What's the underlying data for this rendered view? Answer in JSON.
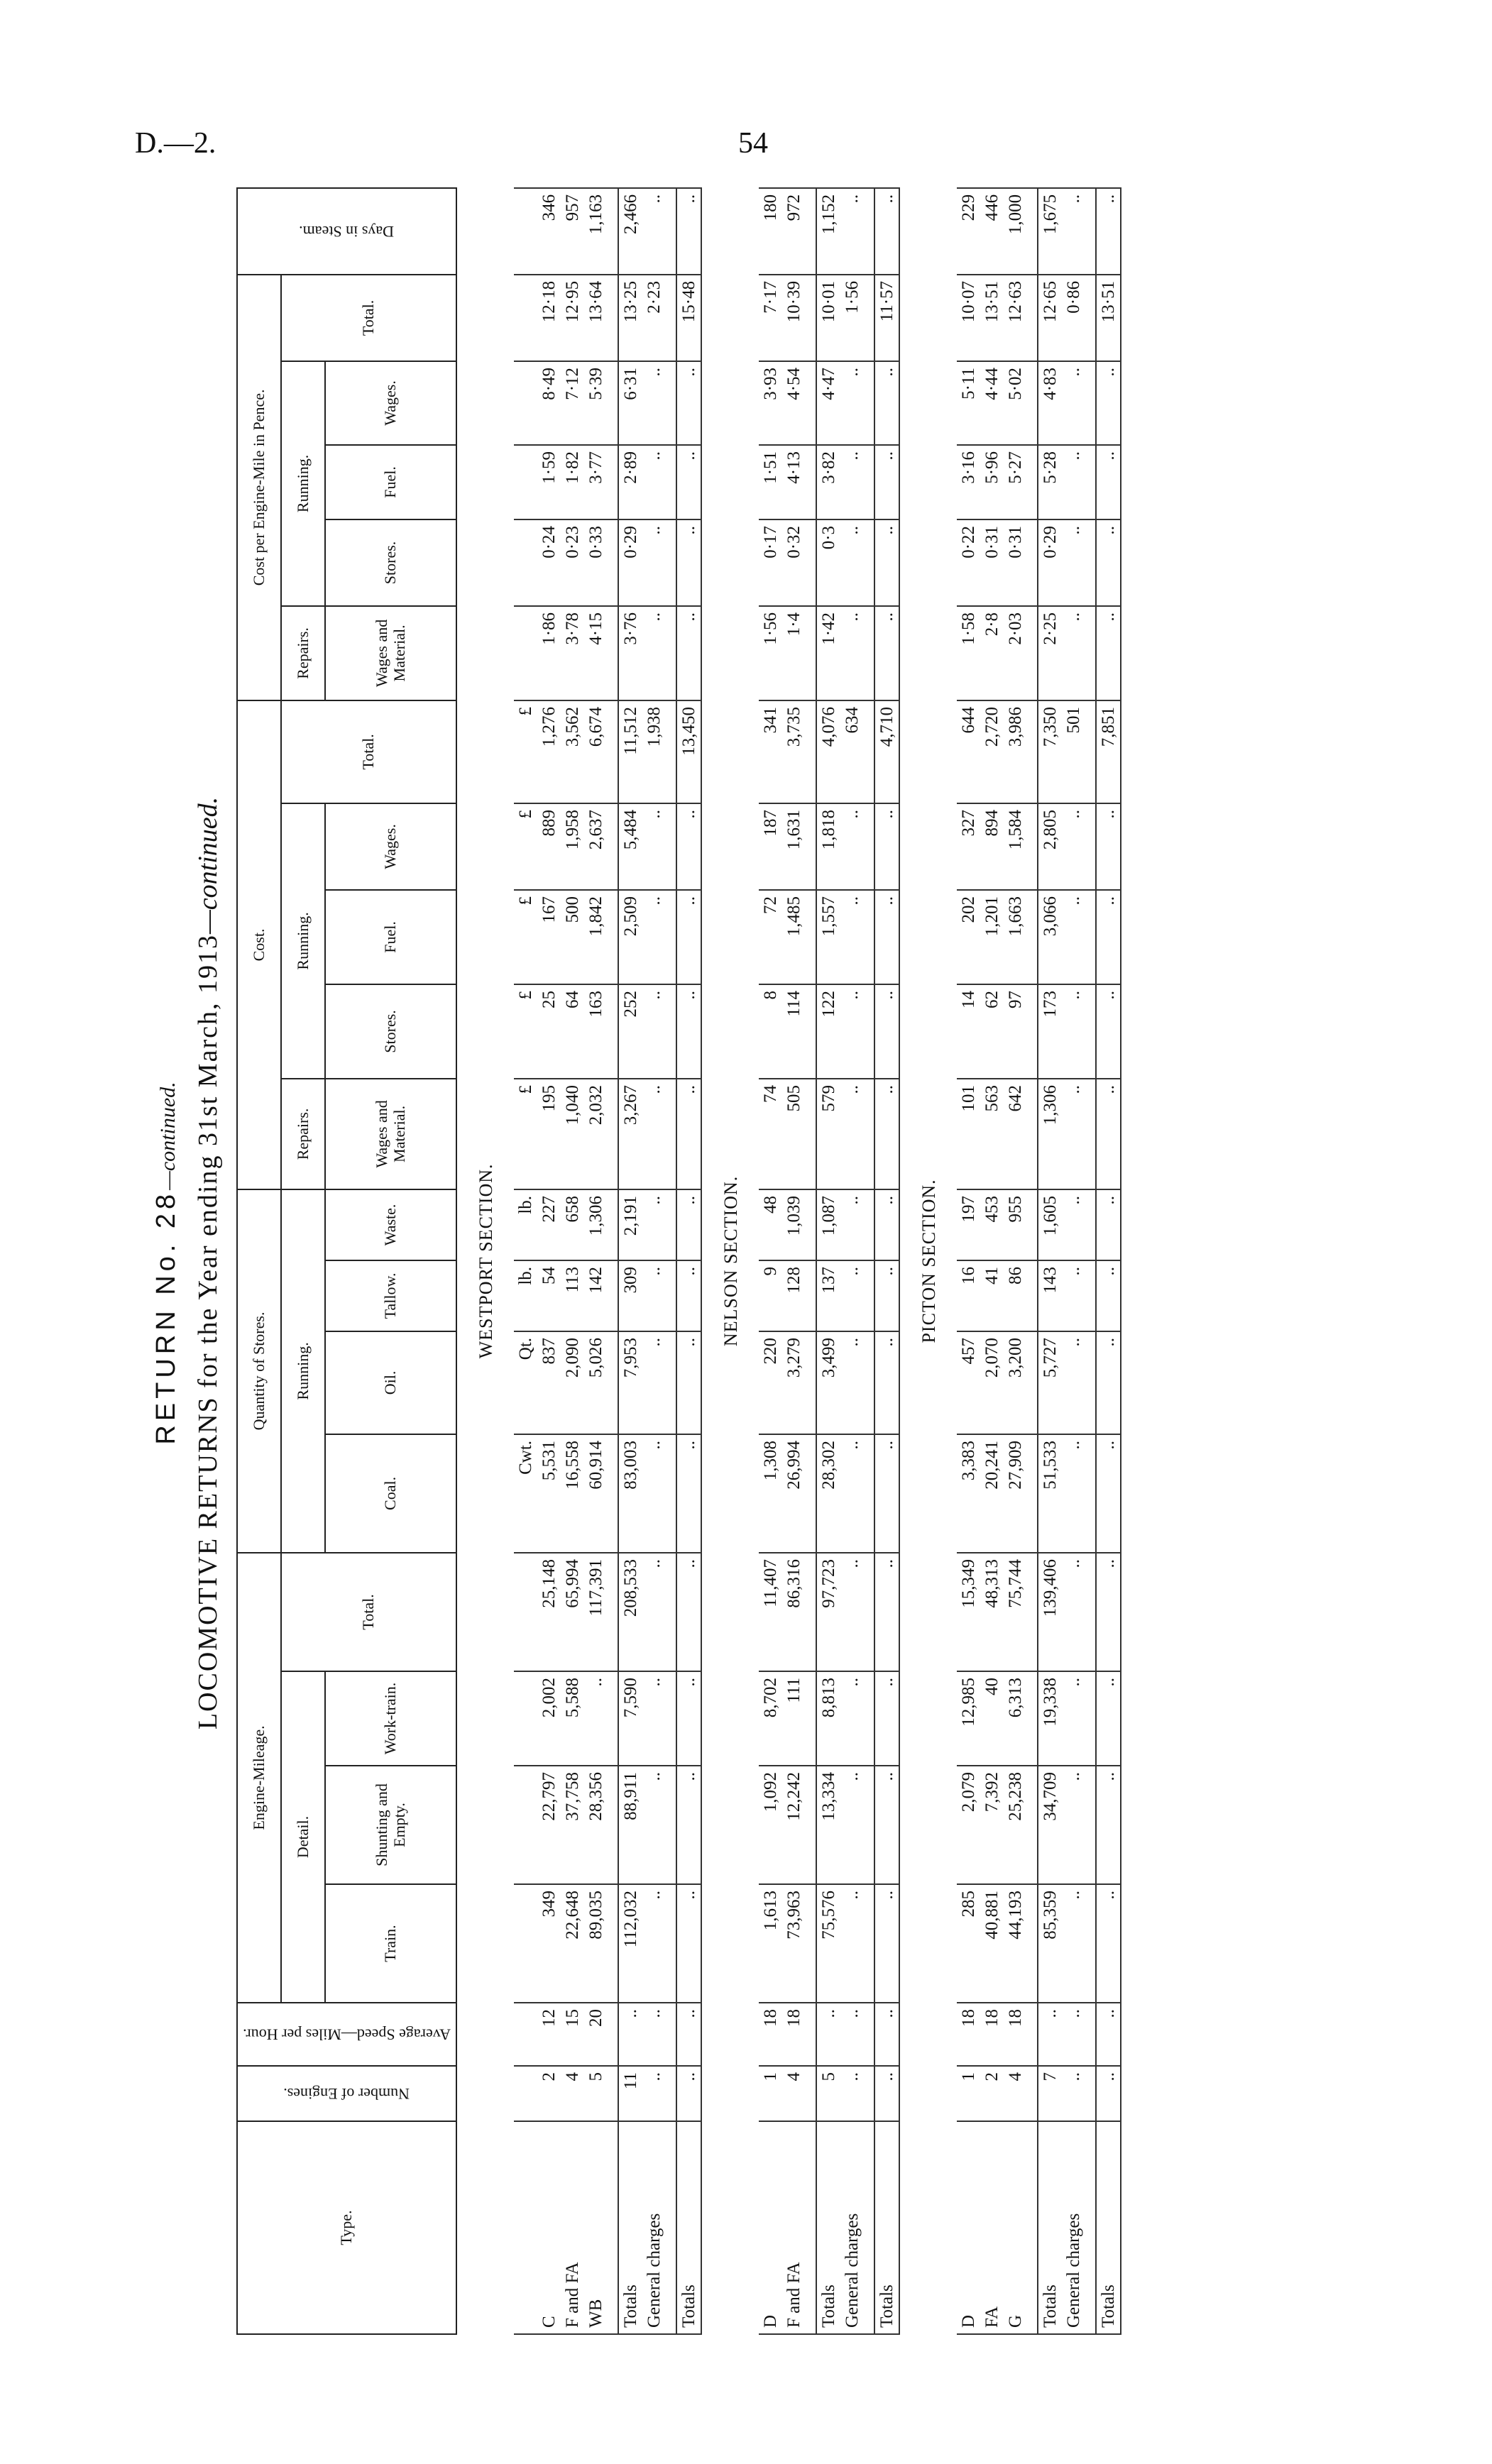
{
  "page": {
    "reference": "D.—2.",
    "number": "54"
  },
  "title": {
    "return_label": "RETURN No. 28",
    "return_suffix": "—continued.",
    "main": "LOCOMOTIVE RETURNS for the Year ending 31st March, 1913",
    "main_suffix": "—continued."
  },
  "headers": {
    "type": "Type.",
    "num_engines": "Number of Engines.",
    "avg_speed": "Average Speed—Miles per Hour.",
    "engine_mileage": "Engine-Mileage.",
    "detail": "Detail.",
    "train": "Train.",
    "shunting": "Shunting and Empty.",
    "work_train": "Work-train.",
    "total": "Total.",
    "quantity_stores": "Quantity of Stores.",
    "running": "Running.",
    "coal": "Coal.",
    "oil": "Oil.",
    "tallow": "Tallow.",
    "waste": "Waste.",
    "cost": "Cost.",
    "repairs": "Repairs.",
    "wages_material": "Wages and Material.",
    "stores": "Stores.",
    "fuel": "Fuel.",
    "wages": "Wages.",
    "cost_per_mile": "Cost per Engine-Mile in Pence.",
    "days_in_steam": "Days in Steam."
  },
  "units": [
    "",
    "",
    "",
    "",
    "",
    "",
    "Cwt.",
    "Qt.",
    "lb.",
    "lb.",
    "£",
    "£",
    "£",
    "£",
    "£",
    "",
    "",
    "",
    "",
    "",
    ""
  ],
  "sections": [
    {
      "name": "WESTPORT SECTION.",
      "rows": [
        {
          "type": "C",
          "cells": [
            "2",
            "12",
            "349",
            "22,797",
            "2,002",
            "25,148",
            "5,531",
            "837",
            "54",
            "227",
            "195",
            "25",
            "167",
            "889",
            "1,276",
            "1·86",
            "0·24",
            "1·59",
            "8·49",
            "12·18",
            "346"
          ]
        },
        {
          "type": "F and FA",
          "cells": [
            "4",
            "15",
            "22,648",
            "37,758",
            "5,588",
            "65,994",
            "16,558",
            "2,090",
            "113",
            "658",
            "1,040",
            "64",
            "500",
            "1,958",
            "3,562",
            "3·78",
            "0·23",
            "1·82",
            "7·12",
            "12·95",
            "957"
          ]
        },
        {
          "type": "WB",
          "cells": [
            "5",
            "20",
            "89,035",
            "28,356",
            "..",
            "117,391",
            "60,914",
            "5,026",
            "142",
            "1,306",
            "2,032",
            "163",
            "1,842",
            "2,637",
            "6,674",
            "4·15",
            "0·33",
            "3·77",
            "5·39",
            "13·64",
            "1,163"
          ]
        }
      ],
      "totals": {
        "type": "Totals",
        "cells": [
          "11",
          "..",
          "112,032",
          "88,911",
          "7,590",
          "208,533",
          "83,003",
          "7,953",
          "309",
          "2,191",
          "3,267",
          "252",
          "2,509",
          "5,484",
          "11,512",
          "3·76",
          "0·29",
          "2·89",
          "6·31",
          "13·25",
          "2,466"
        ]
      },
      "general": {
        "type": "General charges",
        "cells": [
          "..",
          "..",
          "..",
          "..",
          "..",
          "..",
          "..",
          "..",
          "..",
          "..",
          "..",
          "..",
          "..",
          "..",
          "1,938",
          "..",
          "..",
          "..",
          "..",
          "2·23",
          ".."
        ]
      },
      "grand": {
        "type": "Totals",
        "cells": [
          "..",
          "..",
          "..",
          "..",
          "..",
          "..",
          "..",
          "..",
          "..",
          "..",
          "..",
          "..",
          "..",
          "..",
          "13,450",
          "..",
          "..",
          "..",
          "..",
          "15·48",
          ".."
        ]
      }
    },
    {
      "name": "NELSON SECTION.",
      "rows": [
        {
          "type": "D",
          "cells": [
            "1",
            "18",
            "1,613",
            "1,092",
            "8,702",
            "11,407",
            "1,308",
            "220",
            "9",
            "48",
            "74",
            "8",
            "72",
            "187",
            "341",
            "1·56",
            "0·17",
            "1·51",
            "3·93",
            "7·17",
            "180"
          ]
        },
        {
          "type": "F and FA",
          "cells": [
            "4",
            "18",
            "73,963",
            "12,242",
            "111",
            "86,316",
            "26,994",
            "3,279",
            "128",
            "1,039",
            "505",
            "114",
            "1,485",
            "1,631",
            "3,735",
            "1·4",
            "0·32",
            "4·13",
            "4·54",
            "10·39",
            "972"
          ]
        }
      ],
      "totals": {
        "type": "Totals",
        "cells": [
          "5",
          "..",
          "75,576",
          "13,334",
          "8,813",
          "97,723",
          "28,302",
          "3,499",
          "137",
          "1,087",
          "579",
          "122",
          "1,557",
          "1,818",
          "4,076",
          "1·42",
          "0·3",
          "3·82",
          "4·47",
          "10·01",
          "1,152"
        ]
      },
      "general": {
        "type": "General charges",
        "cells": [
          "..",
          "..",
          "..",
          "..",
          "..",
          "..",
          "..",
          "..",
          "..",
          "..",
          "..",
          "..",
          "..",
          "..",
          "634",
          "..",
          "..",
          "..",
          "..",
          "1·56",
          ".."
        ]
      },
      "grand": {
        "type": "Totals",
        "cells": [
          "..",
          "..",
          "..",
          "..",
          "..",
          "..",
          "..",
          "..",
          "..",
          "..",
          "..",
          "..",
          "..",
          "..",
          "4,710",
          "..",
          "..",
          "..",
          "..",
          "11·57",
          ".."
        ]
      }
    },
    {
      "name": "PICTON SECTION.",
      "rows": [
        {
          "type": "D",
          "cells": [
            "1",
            "18",
            "285",
            "2,079",
            "12,985",
            "15,349",
            "3,383",
            "457",
            "16",
            "197",
            "101",
            "14",
            "202",
            "327",
            "644",
            "1·58",
            "0·22",
            "3·16",
            "5·11",
            "10·07",
            "229"
          ]
        },
        {
          "type": "FA",
          "cells": [
            "2",
            "18",
            "40,881",
            "7,392",
            "40",
            "48,313",
            "20,241",
            "2,070",
            "41",
            "453",
            "563",
            "62",
            "1,201",
            "894",
            "2,720",
            "2·8",
            "0·31",
            "5·96",
            "4·44",
            "13·51",
            "446"
          ]
        },
        {
          "type": "G",
          "cells": [
            "4",
            "18",
            "44,193",
            "25,238",
            "6,313",
            "75,744",
            "27,909",
            "3,200",
            "86",
            "955",
            "642",
            "97",
            "1,663",
            "1,584",
            "3,986",
            "2·03",
            "0·31",
            "5·27",
            "5·02",
            "12·63",
            "1,000"
          ]
        }
      ],
      "totals": {
        "type": "Totals",
        "cells": [
          "7",
          "..",
          "85,359",
          "34,709",
          "19,338",
          "139,406",
          "51,533",
          "5,727",
          "143",
          "1,605",
          "1,306",
          "173",
          "3,066",
          "2,805",
          "7,350",
          "2·25",
          "0·29",
          "5·28",
          "4·83",
          "12·65",
          "1,675"
        ]
      },
      "general": {
        "type": "General charges",
        "cells": [
          "..",
          "..",
          "..",
          "..",
          "..",
          "..",
          "..",
          "..",
          "..",
          "..",
          "..",
          "..",
          "..",
          "..",
          "501",
          "..",
          "..",
          "..",
          "..",
          "0·86",
          ".."
        ]
      },
      "grand": {
        "type": "Totals",
        "cells": [
          "..",
          "..",
          "..",
          "..",
          "..",
          "..",
          "..",
          "..",
          "..",
          "..",
          "..",
          "..",
          "..",
          "..",
          "7,851",
          "..",
          "..",
          "..",
          "..",
          "13·51",
          ".."
        ]
      }
    }
  ]
}
